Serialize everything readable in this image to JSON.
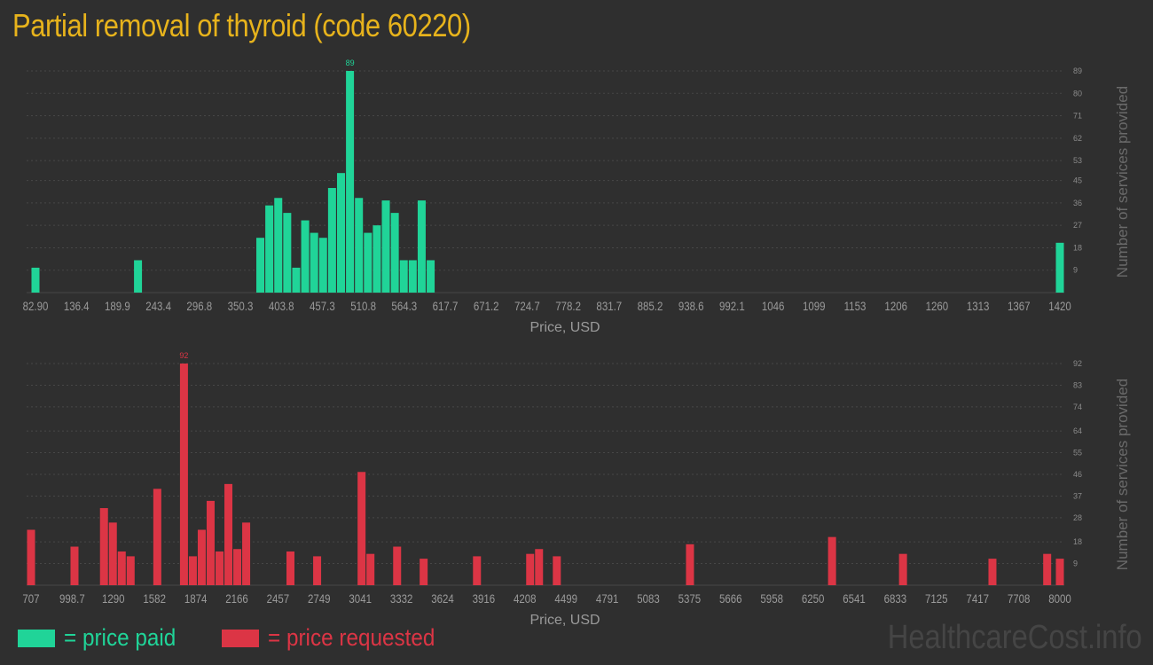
{
  "title": "Partial removal of thyroid (code 60220)",
  "legend": {
    "paid_label": "= price paid",
    "requested_label": "= price requested"
  },
  "watermark": "HealthcareCost.info",
  "colors": {
    "paid": "#20d498",
    "requested": "#dc3545",
    "title": "#e7b31c",
    "background": "#2f2f2f",
    "text": "#9a9a9a",
    "grid": "#474747"
  },
  "chart_data": [
    {
      "type": "bar",
      "name": "price paid",
      "xlabel": "Price, USD",
      "ylabel": "Number of services provided",
      "x_ticks": [
        "82.90",
        "136.4",
        "189.9",
        "243.4",
        "296.8",
        "350.3",
        "403.8",
        "457.3",
        "510.8",
        "564.3",
        "617.7",
        "671.2",
        "724.7",
        "778.2",
        "831.7",
        "885.2",
        "938.6",
        "992.1",
        "1046",
        "1099",
        "1153",
        "1206",
        "1260",
        "1313",
        "1367",
        "1420"
      ],
      "y_ticks": [
        9,
        18,
        27,
        36,
        45,
        53,
        62,
        71,
        80,
        89
      ],
      "ylim": [
        0,
        89
      ],
      "max_label": "89",
      "bars": [
        {
          "x": 82.9,
          "value": 10
        },
        {
          "x": 216.7,
          "value": 13
        },
        {
          "x": 376.4,
          "value": 22
        },
        {
          "x": 388.1,
          "value": 35
        },
        {
          "x": 399.8,
          "value": 38
        },
        {
          "x": 411.5,
          "value": 32
        },
        {
          "x": 423.2,
          "value": 10
        },
        {
          "x": 434.9,
          "value": 29
        },
        {
          "x": 446.6,
          "value": 24
        },
        {
          "x": 458.3,
          "value": 22
        },
        {
          "x": 470.0,
          "value": 42
        },
        {
          "x": 481.7,
          "value": 48
        },
        {
          "x": 493.4,
          "value": 89
        },
        {
          "x": 505.1,
          "value": 38
        },
        {
          "x": 516.8,
          "value": 24
        },
        {
          "x": 528.5,
          "value": 27
        },
        {
          "x": 540.2,
          "value": 37
        },
        {
          "x": 551.9,
          "value": 32
        },
        {
          "x": 563.6,
          "value": 13
        },
        {
          "x": 575.3,
          "value": 13
        },
        {
          "x": 587.0,
          "value": 37
        },
        {
          "x": 598.7,
          "value": 13
        },
        {
          "x": 1420,
          "value": 20
        }
      ]
    },
    {
      "type": "bar",
      "name": "price requested",
      "xlabel": "Price, USD",
      "ylabel": "Number of services provided",
      "x_ticks": [
        "707",
        "998.7",
        "1290",
        "1582",
        "1874",
        "2166",
        "2457",
        "2749",
        "3041",
        "3332",
        "3624",
        "3916",
        "4208",
        "4499",
        "4791",
        "5083",
        "5375",
        "5666",
        "5958",
        "6250",
        "6541",
        "6833",
        "7125",
        "7417",
        "7708",
        "8000"
      ],
      "y_ticks": [
        9,
        18,
        28,
        37,
        46,
        55,
        64,
        74,
        83,
        92
      ],
      "ylim": [
        0,
        92
      ],
      "max_label": "92",
      "bars": [
        {
          "x": 707,
          "value": 23
        },
        {
          "x": 1015,
          "value": 16
        },
        {
          "x": 1224,
          "value": 32
        },
        {
          "x": 1287,
          "value": 26
        },
        {
          "x": 1350,
          "value": 14
        },
        {
          "x": 1413,
          "value": 12
        },
        {
          "x": 1602,
          "value": 40
        },
        {
          "x": 1791,
          "value": 92
        },
        {
          "x": 1854,
          "value": 12
        },
        {
          "x": 1917,
          "value": 23
        },
        {
          "x": 1980,
          "value": 35
        },
        {
          "x": 2043,
          "value": 14
        },
        {
          "x": 2106,
          "value": 42
        },
        {
          "x": 2169,
          "value": 15
        },
        {
          "x": 2232,
          "value": 26
        },
        {
          "x": 2546,
          "value": 14
        },
        {
          "x": 2735,
          "value": 12
        },
        {
          "x": 3050,
          "value": 47
        },
        {
          "x": 3113,
          "value": 13
        },
        {
          "x": 3302,
          "value": 16
        },
        {
          "x": 3490,
          "value": 11
        },
        {
          "x": 3868,
          "value": 12
        },
        {
          "x": 4245,
          "value": 13
        },
        {
          "x": 4308,
          "value": 15
        },
        {
          "x": 4434,
          "value": 12
        },
        {
          "x": 5378,
          "value": 17
        },
        {
          "x": 6385,
          "value": 20
        },
        {
          "x": 6888,
          "value": 13
        },
        {
          "x": 7522,
          "value": 11
        },
        {
          "x": 7910,
          "value": 13
        },
        {
          "x": 8000,
          "value": 11
        }
      ]
    }
  ]
}
